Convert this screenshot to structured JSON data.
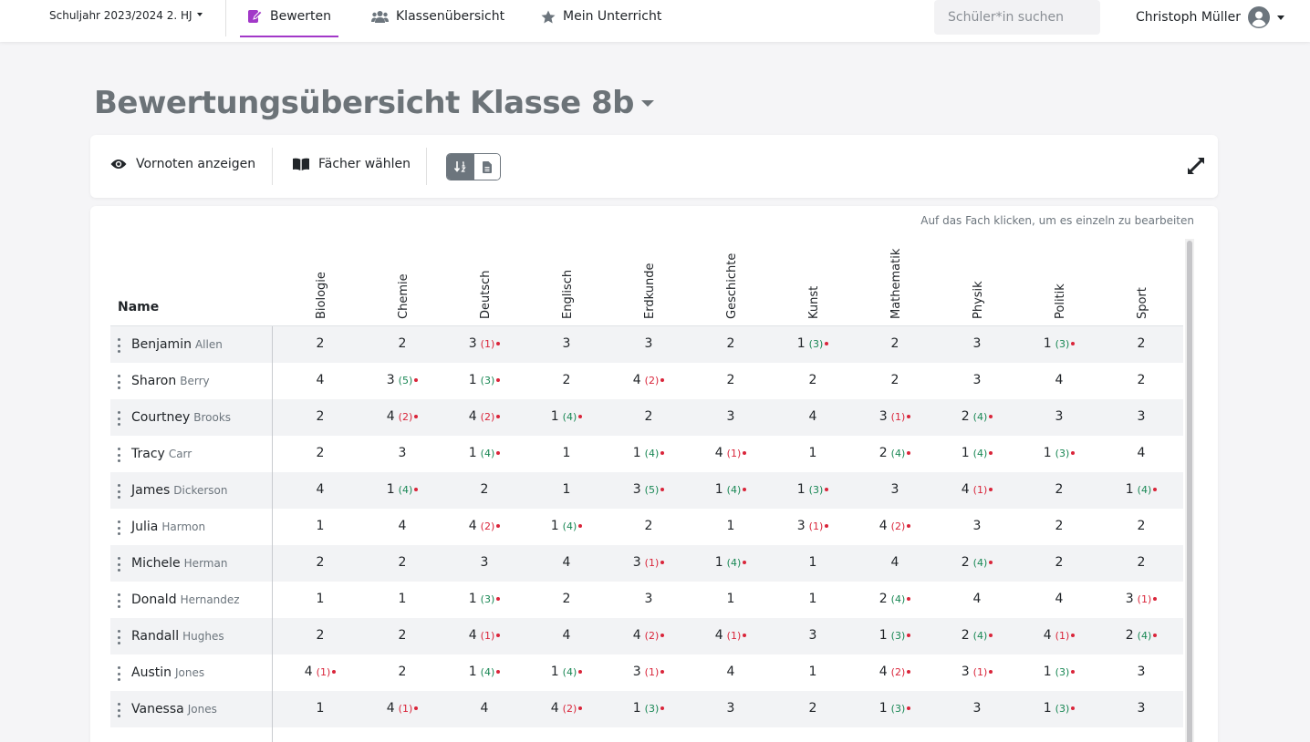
{
  "nav": {
    "school_year": "Schuljahr 2023/2024 2. HJ",
    "tabs": [
      {
        "label": "Bewerten",
        "icon": "pen-square-icon",
        "active": true
      },
      {
        "label": "Klassenübersicht",
        "icon": "users-icon",
        "active": false
      },
      {
        "label": "Mein Unterricht",
        "icon": "star-icon",
        "active": false
      }
    ],
    "search_placeholder": "Schüler*in suchen",
    "user_name": "Christoph Müller"
  },
  "page": {
    "title": "Bewertungsübersicht Klasse 8b"
  },
  "toolbar": {
    "vornoten_label": "Vornoten anzeigen",
    "faecher_label": "Fächer wählen"
  },
  "table": {
    "hint": "Auf das Fach klicken, um es einzeln zu bearbeiten",
    "name_header": "Name",
    "subjects": [
      "Biologie",
      "Chemie",
      "Deutsch",
      "Englisch",
      "Erdkunde",
      "Geschichte",
      "Kunst",
      "Mathematik",
      "Physik",
      "Politik",
      "Sport"
    ],
    "rows": [
      {
        "first": "Benjamin",
        "last": "Allen",
        "grades": [
          [
            "2"
          ],
          [
            "2"
          ],
          [
            "3",
            "(1)",
            "red"
          ],
          [
            "3"
          ],
          [
            "3"
          ],
          [
            "2"
          ],
          [
            "1",
            "(3)",
            "green"
          ],
          [
            "2"
          ],
          [
            "3"
          ],
          [
            "1",
            "(3)",
            "green"
          ],
          [
            "2"
          ]
        ]
      },
      {
        "first": "Sharon",
        "last": "Berry",
        "grades": [
          [
            "4"
          ],
          [
            "3",
            "(5)",
            "green"
          ],
          [
            "1",
            "(3)",
            "green"
          ],
          [
            "2"
          ],
          [
            "4",
            "(2)",
            "red"
          ],
          [
            "2"
          ],
          [
            "2"
          ],
          [
            "2"
          ],
          [
            "3"
          ],
          [
            "4"
          ],
          [
            "2"
          ]
        ]
      },
      {
        "first": "Courtney",
        "last": "Brooks",
        "grades": [
          [
            "2"
          ],
          [
            "4",
            "(2)",
            "red"
          ],
          [
            "4",
            "(2)",
            "red"
          ],
          [
            "1",
            "(4)",
            "green"
          ],
          [
            "2"
          ],
          [
            "3"
          ],
          [
            "4"
          ],
          [
            "3",
            "(1)",
            "red"
          ],
          [
            "2",
            "(4)",
            "green"
          ],
          [
            "3"
          ],
          [
            "3"
          ]
        ]
      },
      {
        "first": "Tracy",
        "last": "Carr",
        "grades": [
          [
            "2"
          ],
          [
            "3"
          ],
          [
            "1",
            "(4)",
            "green"
          ],
          [
            "1"
          ],
          [
            "1",
            "(4)",
            "green"
          ],
          [
            "4",
            "(1)",
            "red"
          ],
          [
            "1"
          ],
          [
            "2",
            "(4)",
            "green"
          ],
          [
            "1",
            "(4)",
            "green"
          ],
          [
            "1",
            "(3)",
            "green"
          ],
          [
            "4"
          ]
        ]
      },
      {
        "first": "James",
        "last": "Dickerson",
        "grades": [
          [
            "4"
          ],
          [
            "1",
            "(4)",
            "green"
          ],
          [
            "2"
          ],
          [
            "1"
          ],
          [
            "3",
            "(5)",
            "green"
          ],
          [
            "1",
            "(4)",
            "green"
          ],
          [
            "1",
            "(3)",
            "green"
          ],
          [
            "3"
          ],
          [
            "4",
            "(1)",
            "red"
          ],
          [
            "2"
          ],
          [
            "1",
            "(4)",
            "green"
          ]
        ]
      },
      {
        "first": "Julia",
        "last": "Harmon",
        "grades": [
          [
            "1"
          ],
          [
            "4"
          ],
          [
            "4",
            "(2)",
            "red"
          ],
          [
            "1",
            "(4)",
            "green"
          ],
          [
            "2"
          ],
          [
            "1"
          ],
          [
            "3",
            "(1)",
            "red"
          ],
          [
            "4",
            "(2)",
            "red"
          ],
          [
            "3"
          ],
          [
            "2"
          ],
          [
            "2"
          ]
        ]
      },
      {
        "first": "Michele",
        "last": "Herman",
        "grades": [
          [
            "2"
          ],
          [
            "2"
          ],
          [
            "3"
          ],
          [
            "4"
          ],
          [
            "3",
            "(1)",
            "red"
          ],
          [
            "1",
            "(4)",
            "green"
          ],
          [
            "1"
          ],
          [
            "4"
          ],
          [
            "2",
            "(4)",
            "green"
          ],
          [
            "2"
          ],
          [
            "2"
          ]
        ]
      },
      {
        "first": "Donald",
        "last": "Hernandez",
        "grades": [
          [
            "1"
          ],
          [
            "1"
          ],
          [
            "1",
            "(3)",
            "green"
          ],
          [
            "2"
          ],
          [
            "3"
          ],
          [
            "1"
          ],
          [
            "1"
          ],
          [
            "2",
            "(4)",
            "green"
          ],
          [
            "4"
          ],
          [
            "4"
          ],
          [
            "3",
            "(1)",
            "red"
          ]
        ]
      },
      {
        "first": "Randall",
        "last": "Hughes",
        "grades": [
          [
            "2"
          ],
          [
            "2"
          ],
          [
            "4",
            "(1)",
            "red"
          ],
          [
            "4"
          ],
          [
            "4",
            "(2)",
            "red"
          ],
          [
            "4",
            "(1)",
            "red"
          ],
          [
            "3"
          ],
          [
            "1",
            "(3)",
            "green"
          ],
          [
            "2",
            "(4)",
            "green"
          ],
          [
            "4",
            "(1)",
            "red"
          ],
          [
            "2",
            "(4)",
            "green"
          ]
        ]
      },
      {
        "first": "Austin",
        "last": "Jones",
        "grades": [
          [
            "4",
            "(1)",
            "red"
          ],
          [
            "2"
          ],
          [
            "1",
            "(4)",
            "green"
          ],
          [
            "1",
            "(4)",
            "green"
          ],
          [
            "3",
            "(1)",
            "red"
          ],
          [
            "4"
          ],
          [
            "1"
          ],
          [
            "4",
            "(2)",
            "red"
          ],
          [
            "3",
            "(1)",
            "red"
          ],
          [
            "1",
            "(3)",
            "green"
          ],
          [
            "3"
          ]
        ]
      },
      {
        "first": "Vanessa",
        "last": "Jones",
        "grades": [
          [
            "1"
          ],
          [
            "4",
            "(1)",
            "red"
          ],
          [
            "4"
          ],
          [
            "4",
            "(2)",
            "red"
          ],
          [
            "1",
            "(3)",
            "green"
          ],
          [
            "3"
          ],
          [
            "2"
          ],
          [
            "1",
            "(3)",
            "green"
          ],
          [
            "3"
          ],
          [
            "1",
            "(3)",
            "green"
          ],
          [
            "3"
          ]
        ]
      }
    ]
  }
}
